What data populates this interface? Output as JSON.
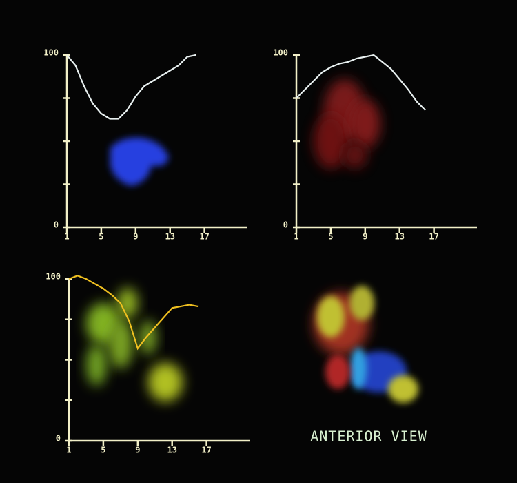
{
  "chart_data": [
    {
      "type": "line",
      "x": [
        1,
        2,
        3,
        4,
        5,
        6,
        7,
        8,
        9,
        10,
        11,
        12,
        13,
        14,
        15,
        16
      ],
      "series": [
        {
          "color": "#e8f0f0",
          "values": [
            100,
            94,
            82,
            72,
            66,
            63,
            63,
            68,
            76,
            82,
            85,
            88,
            91,
            94,
            99,
            100
          ]
        }
      ],
      "xlim": [
        1,
        22
      ],
      "xticks": [
        1,
        5,
        9,
        13,
        17
      ],
      "ylim": [
        0,
        100
      ],
      "yticks": [
        0,
        100
      ],
      "minor_yticks": [
        25,
        50,
        75
      ]
    },
    {
      "type": "line",
      "x": [
        1,
        2,
        3,
        4,
        5,
        6,
        7,
        8,
        9,
        10,
        11,
        12,
        13,
        14,
        15,
        16
      ],
      "series": [
        {
          "color": "#e8f0f0",
          "values": [
            75,
            80,
            85,
            90,
            93,
            95,
            96,
            98,
            99,
            100,
            96,
            92,
            86,
            80,
            73,
            68
          ]
        }
      ],
      "xlim": [
        1,
        22
      ],
      "xticks": [
        1,
        5,
        9,
        13,
        17
      ],
      "ylim": [
        0,
        100
      ],
      "yticks": [
        0,
        100
      ],
      "minor_yticks": [
        25,
        50,
        75
      ]
    },
    {
      "type": "line",
      "x": [
        1,
        2,
        3,
        4,
        5,
        6,
        7,
        8,
        9,
        10,
        11,
        12,
        13,
        14,
        15,
        16
      ],
      "series": [
        {
          "color": "#f0c020",
          "values": [
            100,
            102,
            100,
            97,
            94,
            90,
            85,
            74,
            57,
            64,
            70,
            76,
            82,
            83,
            84,
            83
          ]
        }
      ],
      "xlim": [
        1,
        22
      ],
      "xticks": [
        1,
        5,
        9,
        13,
        17
      ],
      "ylim": [
        0,
        100
      ],
      "yticks": [
        0,
        100
      ],
      "minor_yticks": [
        25,
        50,
        75
      ]
    }
  ],
  "caption": "ANTERIOR VIEW"
}
